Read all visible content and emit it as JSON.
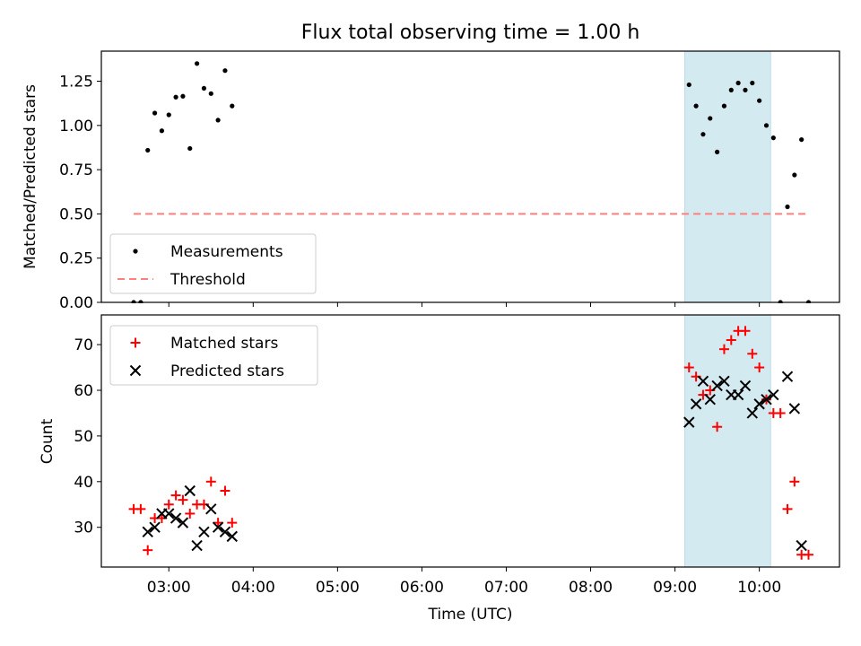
{
  "chart_data": [
    {
      "type": "scatter",
      "title": "Flux total observing time = 1.00 h",
      "xlabel": "",
      "ylabel": "Matched/Predicted stars",
      "xlim": [
        "02:12",
        "10:57"
      ],
      "ylim": [
        0,
        1.42
      ],
      "yticks": [
        "0.00",
        "0.25",
        "0.50",
        "0.75",
        "1.00",
        "1.25"
      ],
      "shaded_interval": [
        "09:07",
        "10:08"
      ],
      "shade_color": "#d4eaf1",
      "legend_position": "lower-left",
      "series": [
        {
          "name": "Measurements",
          "marker": "dot",
          "color": "#000000",
          "points": [
            [
              "02:35",
              0.0
            ],
            [
              "02:40",
              0.0
            ],
            [
              "02:45",
              0.86
            ],
            [
              "02:50",
              1.07
            ],
            [
              "02:55",
              0.97
            ],
            [
              "03:00",
              1.06
            ],
            [
              "03:05",
              1.16
            ],
            [
              "03:10",
              1.165
            ],
            [
              "03:15",
              0.87
            ],
            [
              "03:20",
              1.35
            ],
            [
              "03:25",
              1.21
            ],
            [
              "03:30",
              1.18
            ],
            [
              "03:35",
              1.03
            ],
            [
              "03:40",
              1.31
            ],
            [
              "03:45",
              1.11
            ],
            [
              "09:10",
              1.23
            ],
            [
              "09:15",
              1.11
            ],
            [
              "09:20",
              0.95
            ],
            [
              "09:25",
              1.04
            ],
            [
              "09:30",
              0.85
            ],
            [
              "09:35",
              1.11
            ],
            [
              "09:40",
              1.2
            ],
            [
              "09:45",
              1.24
            ],
            [
              "09:50",
              1.2
            ],
            [
              "09:55",
              1.24
            ],
            [
              "10:00",
              1.14
            ],
            [
              "10:05",
              1.0
            ],
            [
              "10:10",
              0.93
            ],
            [
              "10:15",
              0.0
            ],
            [
              "10:20",
              0.54
            ],
            [
              "10:25",
              0.72
            ],
            [
              "10:30",
              0.92
            ],
            [
              "10:35",
              0.0
            ]
          ]
        },
        {
          "name": "Threshold",
          "marker": "dashed-line",
          "color": "#ff7f7f",
          "points": [
            [
              "02:35",
              0.5
            ],
            [
              "10:35",
              0.5
            ]
          ]
        }
      ]
    },
    {
      "type": "scatter",
      "title": "",
      "xlabel": "Time (UTC)",
      "ylabel": "Count",
      "xlim": [
        "02:12",
        "10:57"
      ],
      "ylim": [
        21.3,
        76.5
      ],
      "yticks": [
        "30",
        "40",
        "50",
        "60",
        "70"
      ],
      "xticks": [
        "03:00",
        "04:00",
        "05:00",
        "06:00",
        "07:00",
        "08:00",
        "09:00",
        "10:00"
      ],
      "shaded_interval": [
        "09:07",
        "10:08"
      ],
      "shade_color": "#d4eaf1",
      "legend_position": "upper-left",
      "series": [
        {
          "name": "Matched stars",
          "marker": "plus",
          "color": "#ff0000",
          "points": [
            [
              "02:35",
              34
            ],
            [
              "02:40",
              34
            ],
            [
              "02:45",
              25
            ],
            [
              "02:50",
              32
            ],
            [
              "02:55",
              32
            ],
            [
              "03:00",
              35
            ],
            [
              "03:05",
              37
            ],
            [
              "03:10",
              36
            ],
            [
              "03:15",
              33
            ],
            [
              "03:20",
              35
            ],
            [
              "03:25",
              35
            ],
            [
              "03:30",
              40
            ],
            [
              "03:35",
              31
            ],
            [
              "03:40",
              38
            ],
            [
              "03:45",
              31
            ],
            [
              "09:10",
              65
            ],
            [
              "09:15",
              63
            ],
            [
              "09:20",
              59
            ],
            [
              "09:25",
              60
            ],
            [
              "09:30",
              52
            ],
            [
              "09:35",
              69
            ],
            [
              "09:40",
              71
            ],
            [
              "09:45",
              73
            ],
            [
              "09:50",
              73
            ],
            [
              "09:55",
              68
            ],
            [
              "10:00",
              65
            ],
            [
              "10:05",
              58
            ],
            [
              "10:10",
              55
            ],
            [
              "10:15",
              55
            ],
            [
              "10:20",
              34
            ],
            [
              "10:25",
              40
            ],
            [
              "10:30",
              24
            ],
            [
              "10:35",
              24
            ]
          ]
        },
        {
          "name": "Predicted stars",
          "marker": "x",
          "color": "#000000",
          "points": [
            [
              "02:45",
              29
            ],
            [
              "02:50",
              30
            ],
            [
              "02:55",
              33
            ],
            [
              "03:00",
              33
            ],
            [
              "03:05",
              32
            ],
            [
              "03:10",
              31
            ],
            [
              "03:15",
              38
            ],
            [
              "03:20",
              26
            ],
            [
              "03:25",
              29
            ],
            [
              "03:30",
              34
            ],
            [
              "03:35",
              30
            ],
            [
              "03:40",
              29
            ],
            [
              "03:45",
              28
            ],
            [
              "09:10",
              53
            ],
            [
              "09:15",
              57
            ],
            [
              "09:20",
              62
            ],
            [
              "09:25",
              58
            ],
            [
              "09:30",
              61
            ],
            [
              "09:35",
              62
            ],
            [
              "09:40",
              59
            ],
            [
              "09:45",
              59
            ],
            [
              "09:50",
              61
            ],
            [
              "09:55",
              55
            ],
            [
              "10:00",
              57
            ],
            [
              "10:05",
              58
            ],
            [
              "10:10",
              59
            ],
            [
              "10:20",
              63
            ],
            [
              "10:25",
              56
            ],
            [
              "10:30",
              26
            ]
          ]
        }
      ]
    }
  ]
}
